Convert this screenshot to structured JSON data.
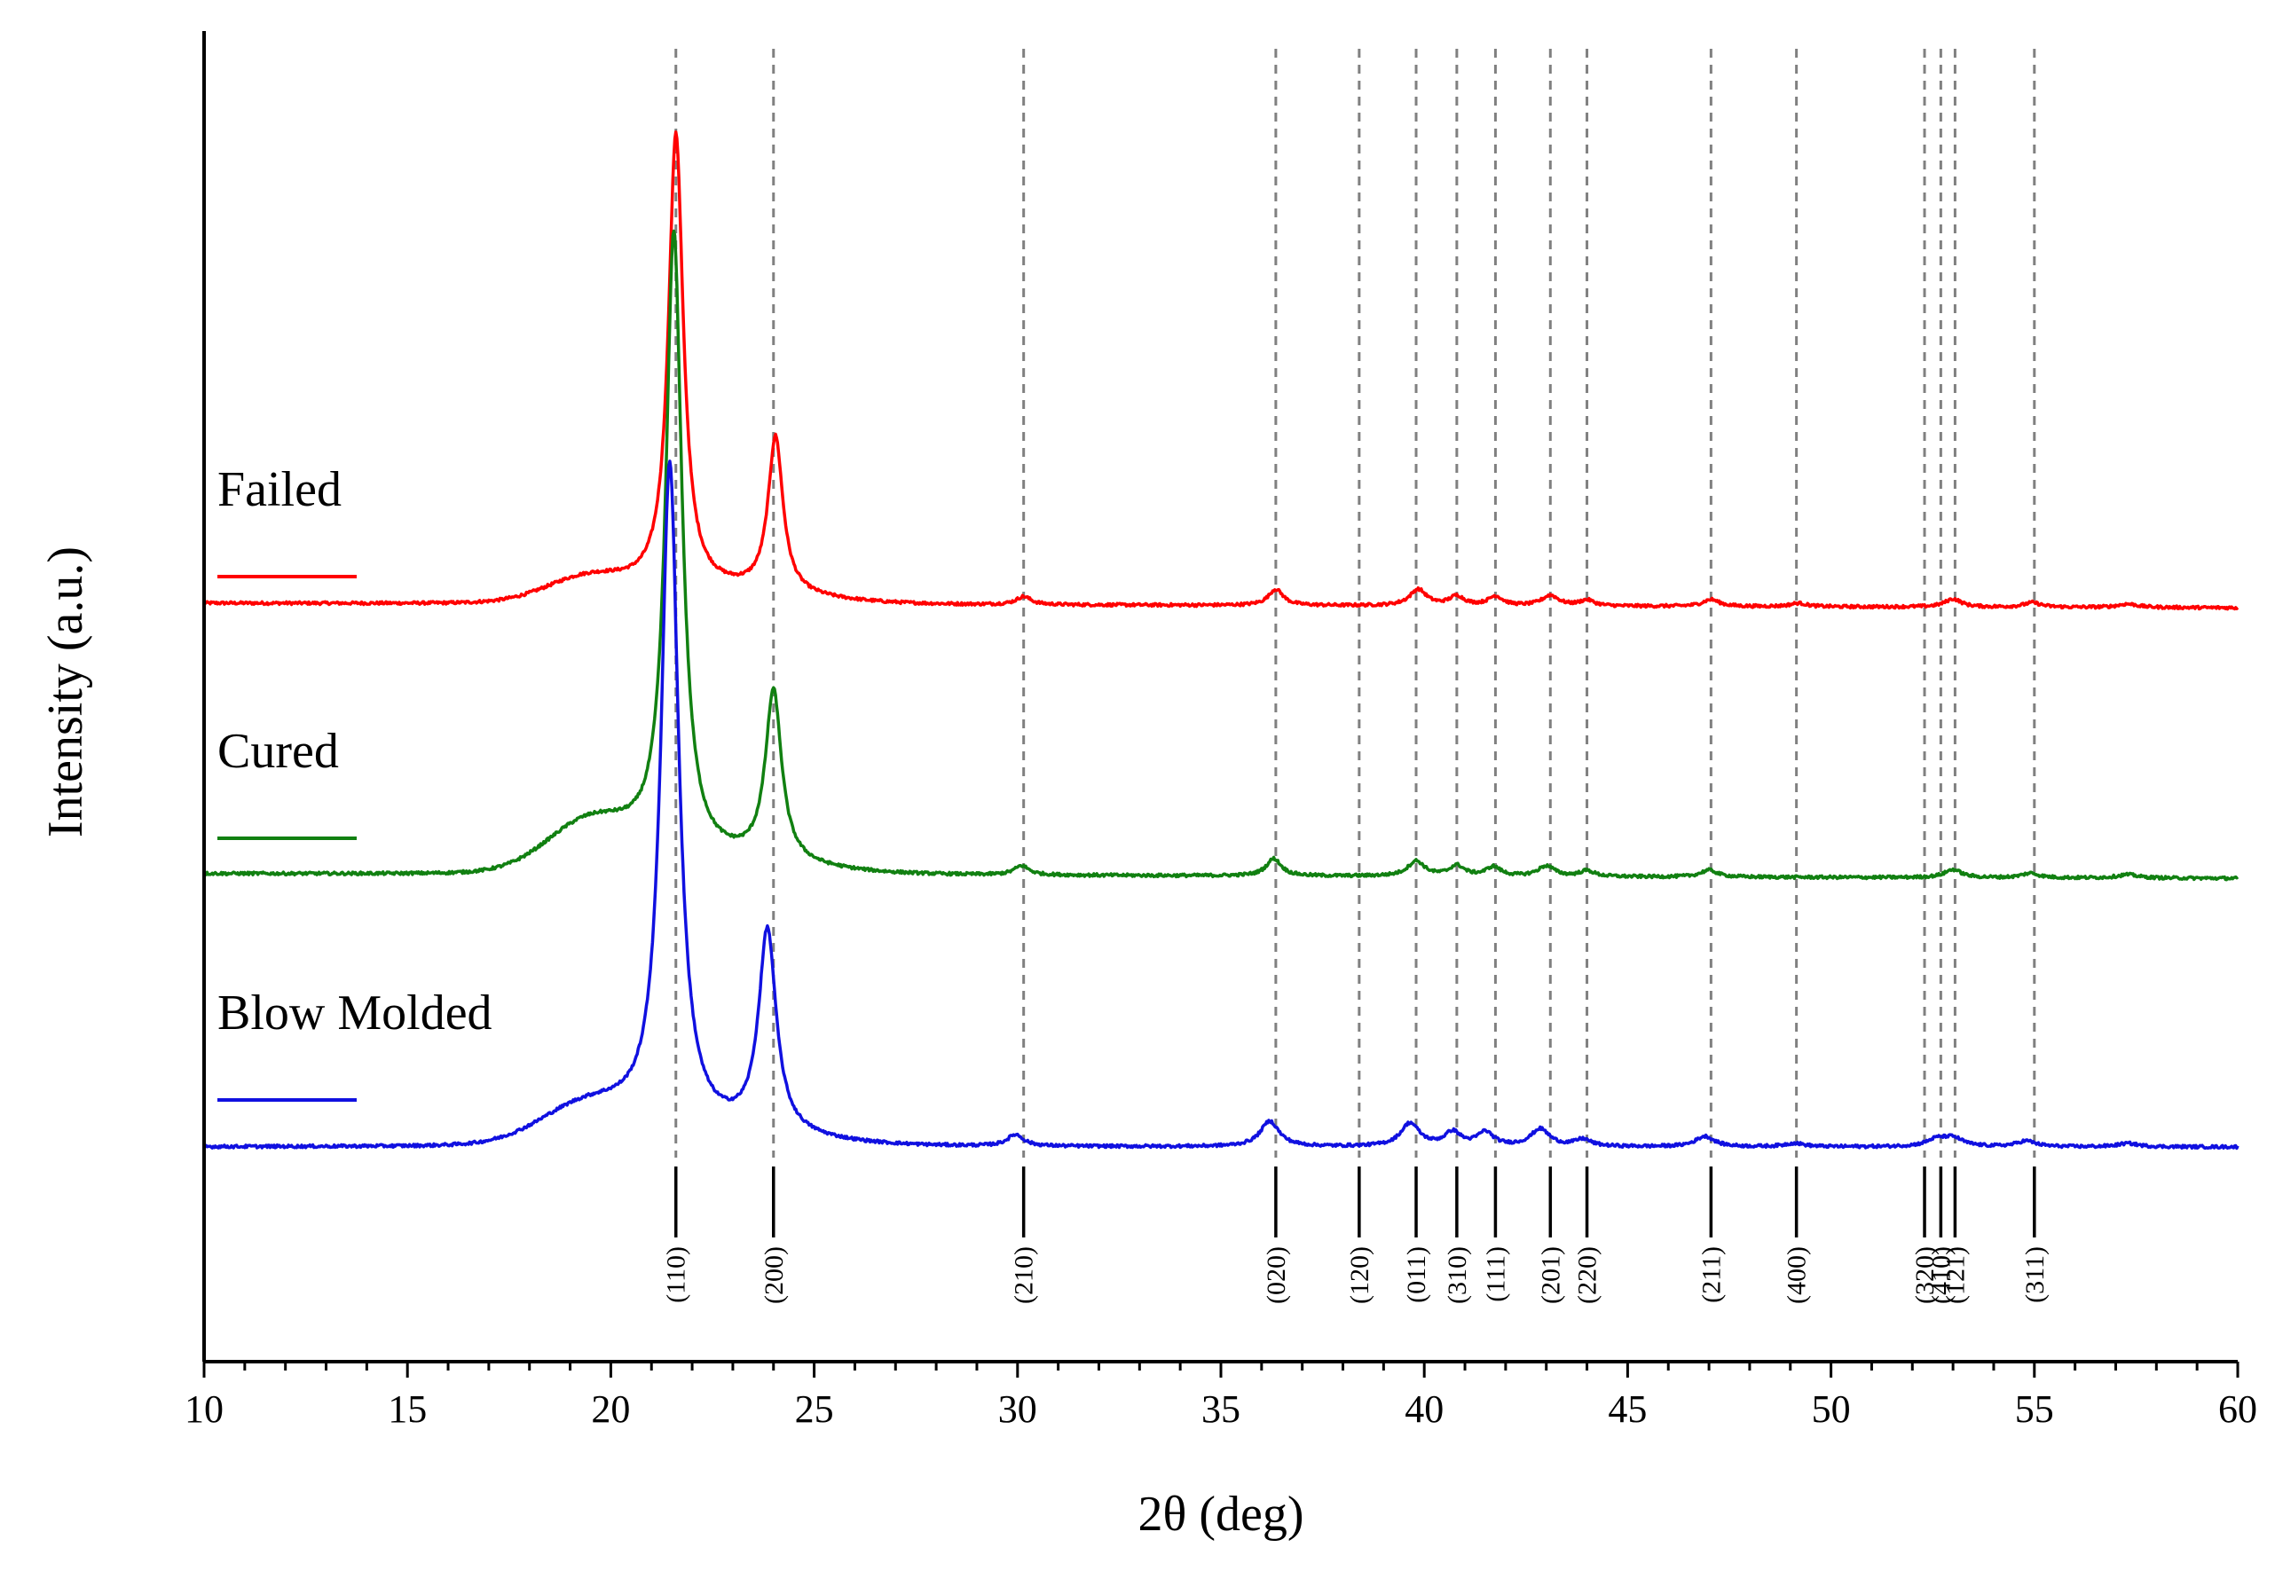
{
  "chart_data": {
    "type": "line",
    "title": "",
    "xlabel": "2θ (deg)",
    "ylabel": "Intensity (a.u.)",
    "xlim": [
      10,
      60
    ],
    "x_ticks": [
      "10",
      "15",
      "20",
      "25",
      "30",
      "35",
      "40",
      "45",
      "50",
      "55",
      "60"
    ],
    "grid": false,
    "legend_position": "left-inline",
    "series": [
      {
        "name": "Failed",
        "color": "#ff0000",
        "baseline": 1.0,
        "baseline_end": 0.96,
        "amorphous_hump": {
          "center": 19.4,
          "height": 0.18,
          "width": 1.4
        },
        "peaks": [
          {
            "pos": 21.6,
            "height": 3.95,
            "width": 0.22
          },
          {
            "pos": 24.05,
            "height": 1.35,
            "width": 0.22
          },
          {
            "pos": 30.15,
            "height": 0.07,
            "width": 0.22
          },
          {
            "pos": 36.35,
            "height": 0.14,
            "width": 0.22
          },
          {
            "pos": 39.85,
            "height": 0.14,
            "width": 0.25
          },
          {
            "pos": 40.8,
            "height": 0.08,
            "width": 0.22
          },
          {
            "pos": 41.75,
            "height": 0.08,
            "width": 0.22
          },
          {
            "pos": 43.1,
            "height": 0.09,
            "width": 0.25
          },
          {
            "pos": 44.0,
            "height": 0.05,
            "width": 0.22
          },
          {
            "pos": 47.05,
            "height": 0.06,
            "width": 0.25
          },
          {
            "pos": 49.2,
            "height": 0.03,
            "width": 0.25
          },
          {
            "pos": 53.0,
            "height": 0.07,
            "width": 0.25
          },
          {
            "pos": 54.95,
            "height": 0.04,
            "width": 0.25
          },
          {
            "pos": 57.3,
            "height": 0.03,
            "width": 0.3
          }
        ]
      },
      {
        "name": "Cured",
        "color": "#118011",
        "baseline": 1.0,
        "baseline_end": 0.96,
        "amorphous_hump": {
          "center": 19.5,
          "height": 0.4,
          "width": 1.5
        },
        "peaks": [
          {
            "pos": 21.55,
            "height": 5.4,
            "width": 0.24
          },
          {
            "pos": 24.0,
            "height": 1.48,
            "width": 0.24
          },
          {
            "pos": 30.1,
            "height": 0.08,
            "width": 0.22
          },
          {
            "pos": 36.3,
            "height": 0.15,
            "width": 0.22
          },
          {
            "pos": 39.8,
            "height": 0.13,
            "width": 0.25
          },
          {
            "pos": 40.8,
            "height": 0.09,
            "width": 0.22
          },
          {
            "pos": 41.7,
            "height": 0.08,
            "width": 0.22
          },
          {
            "pos": 43.0,
            "height": 0.09,
            "width": 0.25
          },
          {
            "pos": 44.0,
            "height": 0.05,
            "width": 0.22
          },
          {
            "pos": 47.0,
            "height": 0.06,
            "width": 0.25
          },
          {
            "pos": 53.0,
            "height": 0.07,
            "width": 0.25
          },
          {
            "pos": 54.9,
            "height": 0.04,
            "width": 0.25
          },
          {
            "pos": 57.3,
            "height": 0.03,
            "width": 0.3
          }
        ]
      },
      {
        "name": "Blow Molded",
        "color": "#1010e0",
        "baseline": 1.0,
        "baseline_end": 1.0,
        "amorphous_hump": {
          "center": 19.4,
          "height": 0.3,
          "width": 1.6
        },
        "peaks": [
          {
            "pos": 21.45,
            "height": 5.75,
            "width": 0.26
          },
          {
            "pos": 23.85,
            "height": 1.75,
            "width": 0.26
          },
          {
            "pos": 29.95,
            "height": 0.1,
            "width": 0.24
          },
          {
            "pos": 36.2,
            "height": 0.22,
            "width": 0.28
          },
          {
            "pos": 39.65,
            "height": 0.2,
            "width": 0.28
          },
          {
            "pos": 40.7,
            "height": 0.12,
            "width": 0.24
          },
          {
            "pos": 41.5,
            "height": 0.12,
            "width": 0.24
          },
          {
            "pos": 42.85,
            "height": 0.15,
            "width": 0.28
          },
          {
            "pos": 43.9,
            "height": 0.06,
            "width": 0.24
          },
          {
            "pos": 46.9,
            "height": 0.09,
            "width": 0.28
          },
          {
            "pos": 49.1,
            "height": 0.03,
            "width": 0.28
          },
          {
            "pos": 52.6,
            "height": 0.06,
            "width": 0.3
          },
          {
            "pos": 53.0,
            "height": 0.07,
            "width": 0.3
          },
          {
            "pos": 54.8,
            "height": 0.05,
            "width": 0.28
          },
          {
            "pos": 57.3,
            "height": 0.03,
            "width": 0.3
          }
        ]
      }
    ],
    "reference_peaks": [
      {
        "pos": 21.6,
        "label": "(110)"
      },
      {
        "pos": 24.0,
        "label": "(200)"
      },
      {
        "pos": 30.15,
        "label": "(210)"
      },
      {
        "pos": 36.35,
        "label": "(020)"
      },
      {
        "pos": 38.4,
        "label": "(120)"
      },
      {
        "pos": 39.8,
        "label": "(011)"
      },
      {
        "pos": 40.8,
        "label": "(310)"
      },
      {
        "pos": 41.75,
        "label": "(111)"
      },
      {
        "pos": 43.1,
        "label": "(201)"
      },
      {
        "pos": 44.0,
        "label": "(220)"
      },
      {
        "pos": 47.05,
        "label": "(211)"
      },
      {
        "pos": 49.15,
        "label": "(400)"
      },
      {
        "pos": 52.3,
        "label": "(320)"
      },
      {
        "pos": 52.7,
        "label": "(410)"
      },
      {
        "pos": 53.05,
        "label": "(121)"
      },
      {
        "pos": 55.0,
        "label": "(311)"
      }
    ]
  }
}
